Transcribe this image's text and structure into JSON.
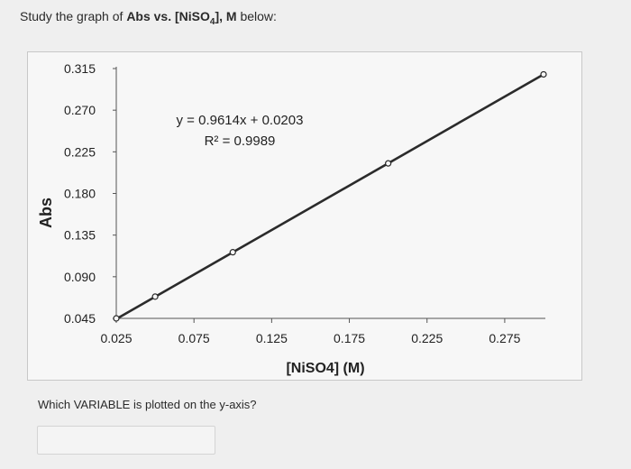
{
  "prompt": {
    "prefix": "Study the graph of ",
    "bold_text": "Abs vs. [NiSO",
    "subscript": "4",
    "bold_suffix": "], M",
    "suffix": " below:"
  },
  "chart_data": {
    "type": "scatter",
    "xlabel": "[NiSO4] (M)",
    "ylabel": "Abs",
    "x_ticks": [
      "0.025",
      "0.075",
      "0.125",
      "0.175",
      "0.225",
      "0.275"
    ],
    "y_ticks": [
      "0.315",
      "0.270",
      "0.225",
      "0.180",
      "0.135",
      "0.090",
      "0.045"
    ],
    "xlim": [
      0.025,
      0.3
    ],
    "ylim": [
      0.045,
      0.315
    ],
    "series": [
      {
        "points": [
          {
            "x": 0.025,
            "y": 0.045
          },
          {
            "x": 0.05,
            "y": 0.0685
          },
          {
            "x": 0.1,
            "y": 0.1165
          },
          {
            "x": 0.2,
            "y": 0.2125
          },
          {
            "x": 0.3,
            "y": 0.3087
          }
        ]
      }
    ],
    "trendline": {
      "slope": 0.9614,
      "intercept": 0.0203
    },
    "equation_text": "y = 0.9614x + 0.0203",
    "r2_text": "R² = 0.9989",
    "grid": false
  },
  "question": {
    "text": "Which VARIABLE is plotted on the y-axis?"
  },
  "answer": {
    "value": ""
  },
  "colors": {
    "line": "#2b2b2b",
    "axis": "#555555"
  }
}
